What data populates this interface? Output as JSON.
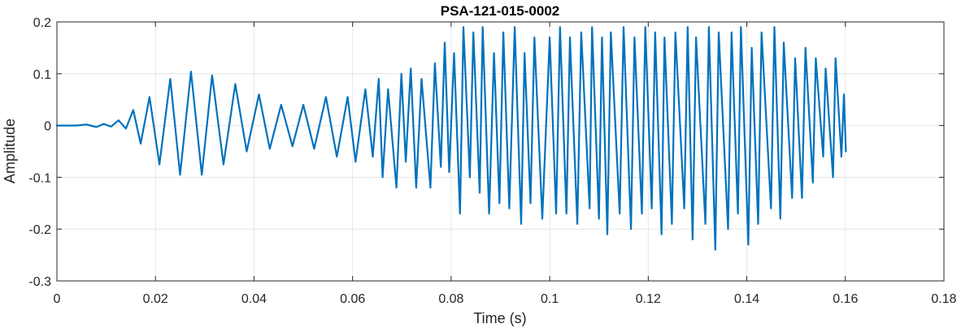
{
  "chart_data": {
    "type": "line",
    "title": "PSA-121-015-0002",
    "xlabel": "Time (s)",
    "ylabel": "Amplitude",
    "xlim": [
      0,
      0.18
    ],
    "ylim": [
      -0.3,
      0.2
    ],
    "xticks": [
      0,
      0.02,
      0.04,
      0.06,
      0.08,
      0.1,
      0.12,
      0.14,
      0.16,
      0.18
    ],
    "xtick_labels": [
      "0",
      "0.02",
      "0.04",
      "0.06",
      "0.08",
      "0.1",
      "0.12",
      "0.14",
      "0.16",
      "0.18"
    ],
    "yticks": [
      -0.3,
      -0.2,
      -0.1,
      0,
      0.1,
      0.2
    ],
    "ytick_labels": [
      "-0.3",
      "-0.2",
      "-0.1",
      "0",
      "0.1",
      "0.2"
    ],
    "grid": true,
    "box": true,
    "colors": {
      "line": "#0072BD",
      "grid": "#e6e6e6",
      "axis": "#262626"
    },
    "series": [
      {
        "x": [
          0,
          0.004,
          0.006,
          0.008,
          0.0095,
          0.011,
          0.0125,
          0.014,
          0.0155,
          0.017,
          0.0188,
          0.0208,
          0.023,
          0.025,
          0.0272,
          0.0294,
          0.0315,
          0.0338,
          0.0362,
          0.0385,
          0.041,
          0.0432,
          0.0455,
          0.0478,
          0.05,
          0.0522,
          0.0546,
          0.0568,
          0.059,
          0.0606,
          0.0626,
          0.0641,
          0.0653,
          0.0661,
          0.0672,
          0.0689,
          0.0699,
          0.0708,
          0.0718,
          0.0729,
          0.074,
          0.0758,
          0.0767,
          0.0779,
          0.0787,
          0.0796,
          0.0806,
          0.0818,
          0.0825,
          0.0838,
          0.0845,
          0.0858,
          0.0864,
          0.0877,
          0.0887,
          0.0898,
          0.0906,
          0.0918,
          0.0929,
          0.0942,
          0.0949,
          0.0961,
          0.0969,
          0.0985,
          0.1,
          0.1013,
          0.1021,
          0.1034,
          0.1041,
          0.1056,
          0.1064,
          0.1081,
          0.1086,
          0.11,
          0.1106,
          0.1117,
          0.1124,
          0.1142,
          0.115,
          0.1165,
          0.1172,
          0.1187,
          0.1194,
          0.1207,
          0.1214,
          0.1227,
          0.1233,
          0.1248,
          0.1255,
          0.1273,
          0.128,
          0.129,
          0.1297,
          0.1316,
          0.1323,
          0.1336,
          0.1343,
          0.1362,
          0.1369,
          0.1382,
          0.1388,
          0.1403,
          0.141,
          0.1423,
          0.143,
          0.1449,
          0.1456,
          0.1468,
          0.1475,
          0.1492,
          0.1498,
          0.1512,
          0.1519,
          0.1534,
          0.154,
          0.1555,
          0.156,
          0.1575,
          0.158,
          0.1592,
          0.1597,
          0.1601
        ],
        "y": [
          0,
          0,
          0.002,
          -0.003,
          0.003,
          -0.002,
          0.01,
          -0.006,
          0.03,
          -0.035,
          0.055,
          -0.075,
          0.09,
          -0.095,
          0.104,
          -0.095,
          0.097,
          -0.075,
          0.08,
          -0.05,
          0.06,
          -0.045,
          0.04,
          -0.04,
          0.04,
          -0.045,
          0.055,
          -0.06,
          0.055,
          -0.07,
          0.07,
          -0.06,
          0.09,
          -0.1,
          0.07,
          -0.12,
          0.1,
          -0.07,
          0.11,
          -0.12,
          0.09,
          -0.12,
          0.12,
          -0.08,
          0.16,
          -0.09,
          0.14,
          -0.17,
          0.19,
          -0.1,
          0.18,
          -0.13,
          0.19,
          -0.17,
          0.14,
          -0.15,
          0.18,
          -0.16,
          0.19,
          -0.19,
          0.14,
          -0.15,
          0.17,
          -0.18,
          0.17,
          -0.17,
          0.19,
          -0.17,
          0.17,
          -0.19,
          0.18,
          -0.16,
          0.19,
          -0.18,
          0.17,
          -0.21,
          0.18,
          -0.17,
          0.19,
          -0.2,
          0.17,
          -0.17,
          0.19,
          -0.16,
          0.18,
          -0.21,
          0.17,
          -0.19,
          0.18,
          -0.16,
          0.19,
          -0.22,
          0.17,
          -0.19,
          0.19,
          -0.24,
          0.18,
          -0.2,
          0.18,
          -0.17,
          0.19,
          -0.23,
          0.15,
          -0.19,
          0.18,
          -0.16,
          0.19,
          -0.18,
          0.16,
          -0.14,
          0.13,
          -0.14,
          0.15,
          -0.11,
          0.13,
          -0.06,
          0.11,
          -0.1,
          0.13,
          -0.06,
          0.06,
          -0.05
        ]
      }
    ]
  }
}
